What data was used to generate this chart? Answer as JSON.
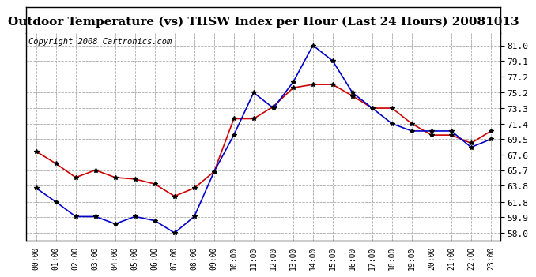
{
  "title": "Outdoor Temperature (vs) THSW Index per Hour (Last 24 Hours) 20081013",
  "copyright": "Copyright 2008 Cartronics.com",
  "hours": [
    "00:00",
    "01:00",
    "02:00",
    "03:00",
    "04:00",
    "05:00",
    "06:00",
    "07:00",
    "08:00",
    "09:00",
    "10:00",
    "11:00",
    "12:00",
    "13:00",
    "14:00",
    "15:00",
    "16:00",
    "17:00",
    "18:00",
    "19:00",
    "20:00",
    "21:00",
    "22:00",
    "23:00"
  ],
  "red_data": [
    68.0,
    66.5,
    64.8,
    65.7,
    64.8,
    64.6,
    64.0,
    62.5,
    63.5,
    65.5,
    72.0,
    72.0,
    73.5,
    75.8,
    76.2,
    76.2,
    74.8,
    73.3,
    73.3,
    71.4,
    70.0,
    70.0,
    69.0,
    70.5
  ],
  "blue_data": [
    63.5,
    61.8,
    60.0,
    60.0,
    59.1,
    60.0,
    59.5,
    58.0,
    60.0,
    65.5,
    70.0,
    75.2,
    73.3,
    76.5,
    81.0,
    79.1,
    75.2,
    73.3,
    71.4,
    70.5,
    70.5,
    70.5,
    68.5,
    69.5
  ],
  "red_color": "#cc0000",
  "blue_color": "#0000cc",
  "marker": "*",
  "marker_color": "#000000",
  "marker_size": 4,
  "line_width": 1.2,
  "yticks": [
    58.0,
    59.9,
    61.8,
    63.8,
    65.7,
    67.6,
    69.5,
    71.4,
    73.3,
    75.2,
    77.2,
    79.1,
    81.0
  ],
  "ylim": [
    57.0,
    82.5
  ],
  "bg_color": "#ffffff",
  "grid_color": "#aaaaaa",
  "title_fontsize": 11,
  "copyright_fontsize": 7.5
}
